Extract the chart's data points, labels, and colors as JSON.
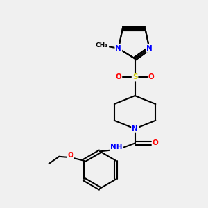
{
  "bg_color": "#f0f0f0",
  "bond_color": "#000000",
  "atom_colors": {
    "N": "#0000ff",
    "O": "#ff0000",
    "S": "#cccc00",
    "H": "#708090",
    "C": "#000000"
  },
  "font_size": 7.5,
  "line_width": 1.5
}
